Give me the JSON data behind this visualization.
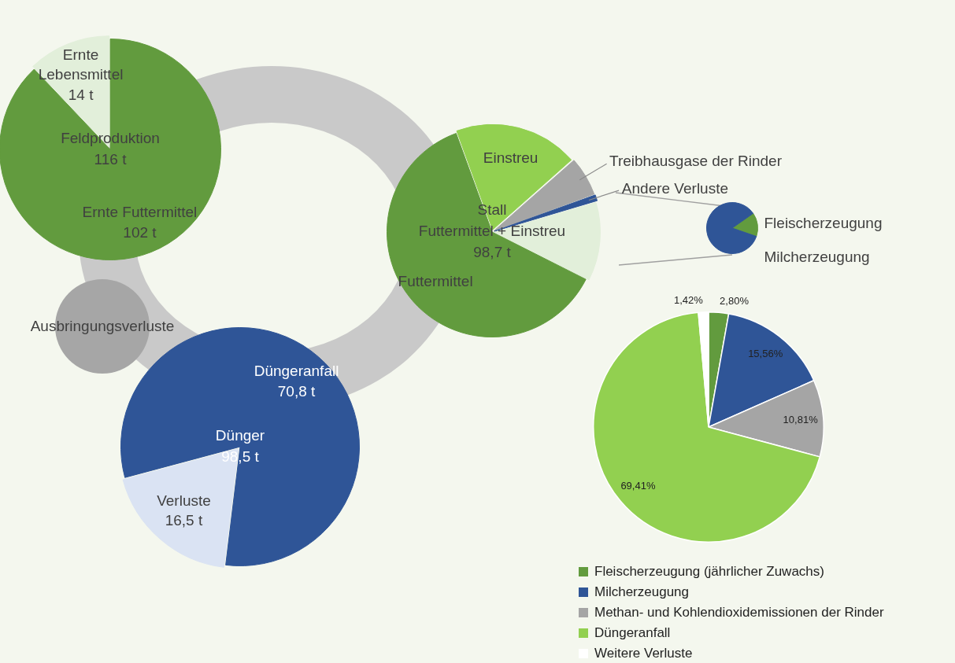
{
  "chart_data": [
    {
      "type": "pie",
      "title": "Feldproduktion",
      "annotations": [
        "116 t"
      ],
      "categories": [
        "Ernte Futtermittel",
        "Ernte Lebensmittel"
      ],
      "values": [
        102,
        14
      ],
      "value_labels": [
        "102 t",
        "14 t"
      ],
      "colors": [
        "#629b3e",
        "#e2efda"
      ]
    },
    {
      "type": "pie",
      "title": "Dünger",
      "annotations": [
        "98,5 t"
      ],
      "categories": [
        "Düngeranfall",
        "Verluste"
      ],
      "values": [
        70.8,
        16.5
      ],
      "value_labels": [
        "70,8 t",
        "16,5 t"
      ],
      "colors": [
        "#2f5597",
        "#dae3f3"
      ]
    },
    {
      "type": "pie",
      "title": "Stall",
      "subtitle": "Futtermittel + Einstreu",
      "annotations": [
        "98,7 t"
      ],
      "categories": [
        "Einstreu",
        "Treibhausgase der Rinder",
        "Andere Verluste",
        null,
        "Futtermittel"
      ],
      "values": [
        19,
        6,
        1,
        12,
        62
      ],
      "colors": [
        "#92d050",
        "#a5a5a5",
        "#2f5597",
        "#e2efda",
        "#629b3e"
      ]
    },
    {
      "type": "pie",
      "categories": [
        "Fleischerzeugung",
        "Milcherzeugung"
      ],
      "values": [
        15,
        85
      ],
      "colors": [
        "#629b3e",
        "#2f5597"
      ]
    },
    {
      "type": "pie",
      "categories": [
        "Fleischerzeugung (jährlicher Zuwachs)",
        "Milcherzeugung",
        "Methan- und Kohlendioxidemissionen der Rinder",
        "Düngeranfall",
        "Weitere Verluste"
      ],
      "values": [
        2.8,
        15.56,
        10.81,
        69.41,
        1.42
      ],
      "value_labels": [
        "2,80%",
        "15,56%",
        "10,81%",
        "69,41%",
        "1,42%"
      ],
      "colors": [
        "#629b3e",
        "#2f5597",
        "#a5a5a5",
        "#92d050",
        "#ffffff"
      ],
      "legend": "bottom"
    },
    {
      "type": "other",
      "title": "Ausbringungsverluste"
    }
  ]
}
